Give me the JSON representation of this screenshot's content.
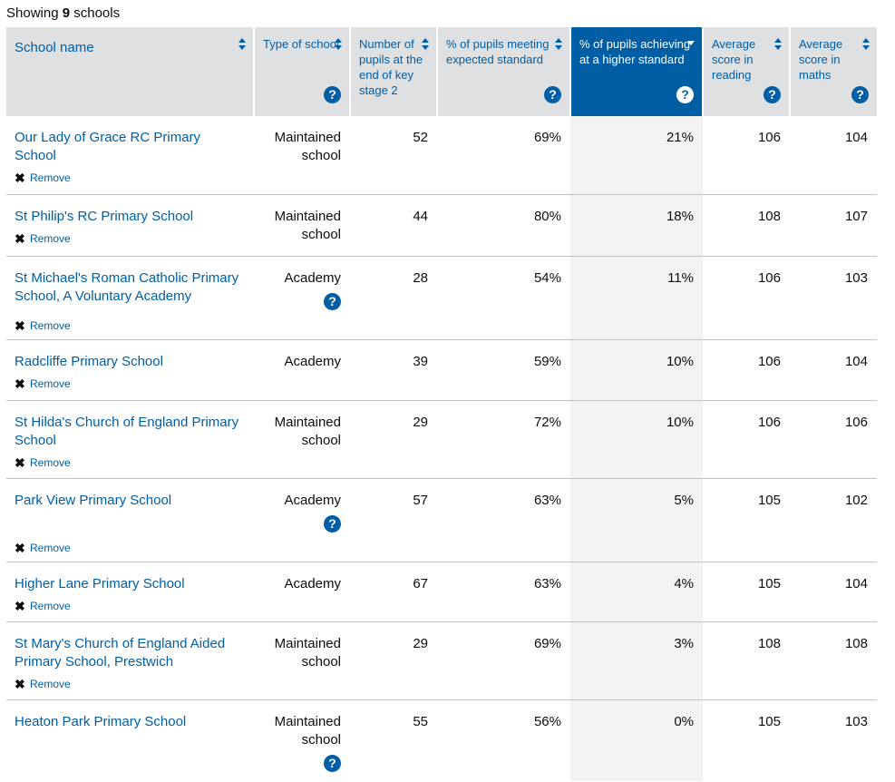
{
  "summary": {
    "prefix": "Showing",
    "count": "9",
    "suffix": "schools"
  },
  "columns": [
    {
      "label": "School name"
    },
    {
      "label": "Type of school"
    },
    {
      "label": "Number of pupils at the end of key stage 2"
    },
    {
      "label": "% of pupils meeting expected standard"
    },
    {
      "label": "% of pupils achieving at a higher standard"
    },
    {
      "label": "Average score in reading"
    },
    {
      "label": "Average score in maths"
    }
  ],
  "sorted_column": "% of pupils achieving at a higher standard",
  "remove_label": "Remove",
  "remove_glyph": "✖",
  "help_glyph": "?",
  "colors": {
    "link": "#005ea5",
    "header_bg": "#dee0e2",
    "active_header_bg": "#005ea5",
    "highlight_col_bg": "#f3f3f3"
  },
  "rows": [
    {
      "name": "Our Lady of Grace RC Primary School",
      "type": "Maintained school",
      "pupils": "52",
      "expected": "69%",
      "higher": "21%",
      "reading": "106",
      "maths": "104"
    },
    {
      "name": "St Philip's RC Primary School",
      "type": "Maintained school",
      "pupils": "44",
      "expected": "80%",
      "higher": "18%",
      "reading": "108",
      "maths": "107"
    },
    {
      "name": "St Michael's Roman Catholic Primary School, A Voluntary Academy",
      "type": "Academy",
      "pupils": "28",
      "expected": "54%",
      "higher": "11%",
      "reading": "106",
      "maths": "103"
    },
    {
      "name": "Radcliffe Primary School",
      "type": "Academy",
      "pupils": "39",
      "expected": "59%",
      "higher": "10%",
      "reading": "106",
      "maths": "104"
    },
    {
      "name": "St Hilda's Church of England Primary School",
      "type": "Maintained school",
      "pupils": "29",
      "expected": "72%",
      "higher": "10%",
      "reading": "106",
      "maths": "106"
    },
    {
      "name": "Park View Primary School",
      "type": "Academy",
      "pupils": "57",
      "expected": "63%",
      "higher": "5%",
      "reading": "105",
      "maths": "102"
    },
    {
      "name": "Higher Lane Primary School",
      "type": "Academy",
      "pupils": "67",
      "expected": "63%",
      "higher": "4%",
      "reading": "105",
      "maths": "104"
    },
    {
      "name": "St Mary's Church of England Aided Primary School, Prestwich",
      "type": "Maintained school",
      "pupils": "29",
      "expected": "69%",
      "higher": "3%",
      "reading": "108",
      "maths": "108"
    },
    {
      "name": "Heaton Park Primary School",
      "type": "Maintained school",
      "pupils": "55",
      "expected": "56%",
      "higher": "0%",
      "reading": "105",
      "maths": "103"
    }
  ]
}
